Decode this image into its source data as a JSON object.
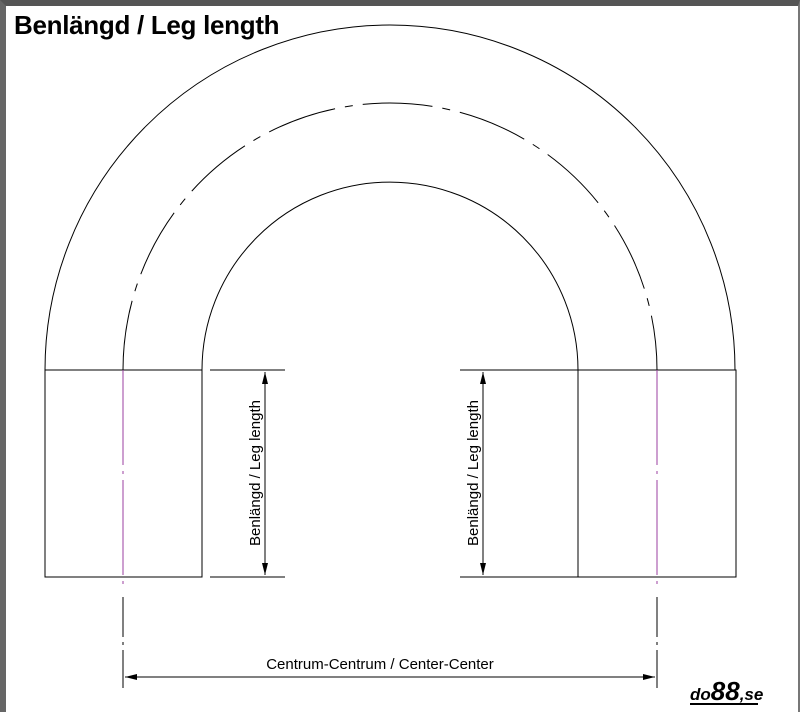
{
  "title": "Benlängd / Leg length",
  "dimensions": {
    "left_leg": "Benlängd / Leg length",
    "right_leg": "Benlängd / Leg length",
    "center_center": "Centrum-Centrum / Center-Center"
  },
  "logo": {
    "text": "do88.se",
    "prefix": "do",
    "number": "88",
    "suffix": ",se"
  },
  "colors": {
    "line": "#000000",
    "centerline": "#9b3fa0"
  }
}
